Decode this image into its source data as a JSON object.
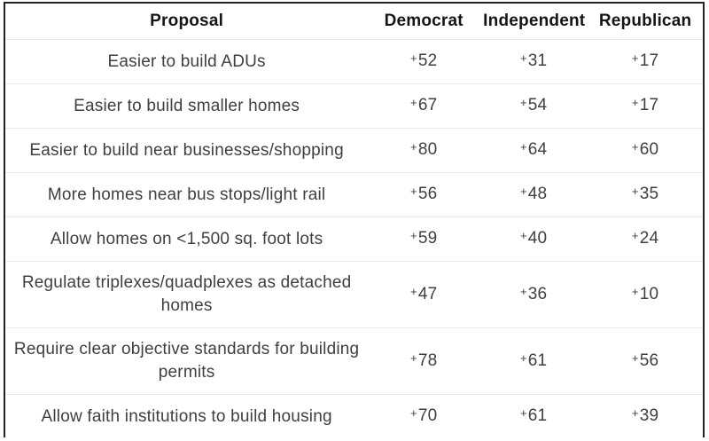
{
  "colors": {
    "frame_border": "#222222",
    "row_separator": "#e7e7e7",
    "header_text": "#151515",
    "body_text": "#3f3f3f",
    "background": "#ffffff"
  },
  "chart_data": {
    "type": "table",
    "columns": [
      {
        "key": "proposal",
        "label": "Proposal"
      },
      {
        "key": "democrat",
        "label": "Democrat"
      },
      {
        "key": "independent",
        "label": "Independent"
      },
      {
        "key": "republican",
        "label": "Republican"
      }
    ],
    "rows": [
      {
        "proposal": "Easier to build ADUs",
        "democrat": "+52",
        "independent": "+31",
        "republican": "+17"
      },
      {
        "proposal": "Easier to build smaller homes",
        "democrat": "+67",
        "independent": "+54",
        "republican": "+17"
      },
      {
        "proposal": "Easier to build near businesses/shopping",
        "democrat": "+80",
        "independent": "+64",
        "republican": "+60"
      },
      {
        "proposal": "More homes near bus stops/light rail",
        "democrat": "+56",
        "independent": "+48",
        "republican": "+35"
      },
      {
        "proposal": "Allow homes on <1,500 sq. foot lots",
        "democrat": "+59",
        "independent": "+40",
        "republican": "+24"
      },
      {
        "proposal": "Regulate triplexes/quadplexes as detached\nhomes",
        "democrat": "+47",
        "independent": "+36",
        "republican": "+10"
      },
      {
        "proposal": "Require clear objective standards for building\npermits",
        "democrat": "+78",
        "independent": "+61",
        "republican": "+56"
      },
      {
        "proposal": "Allow faith institutions to build housing",
        "democrat": "+70",
        "independent": "+61",
        "republican": "+39"
      }
    ]
  }
}
